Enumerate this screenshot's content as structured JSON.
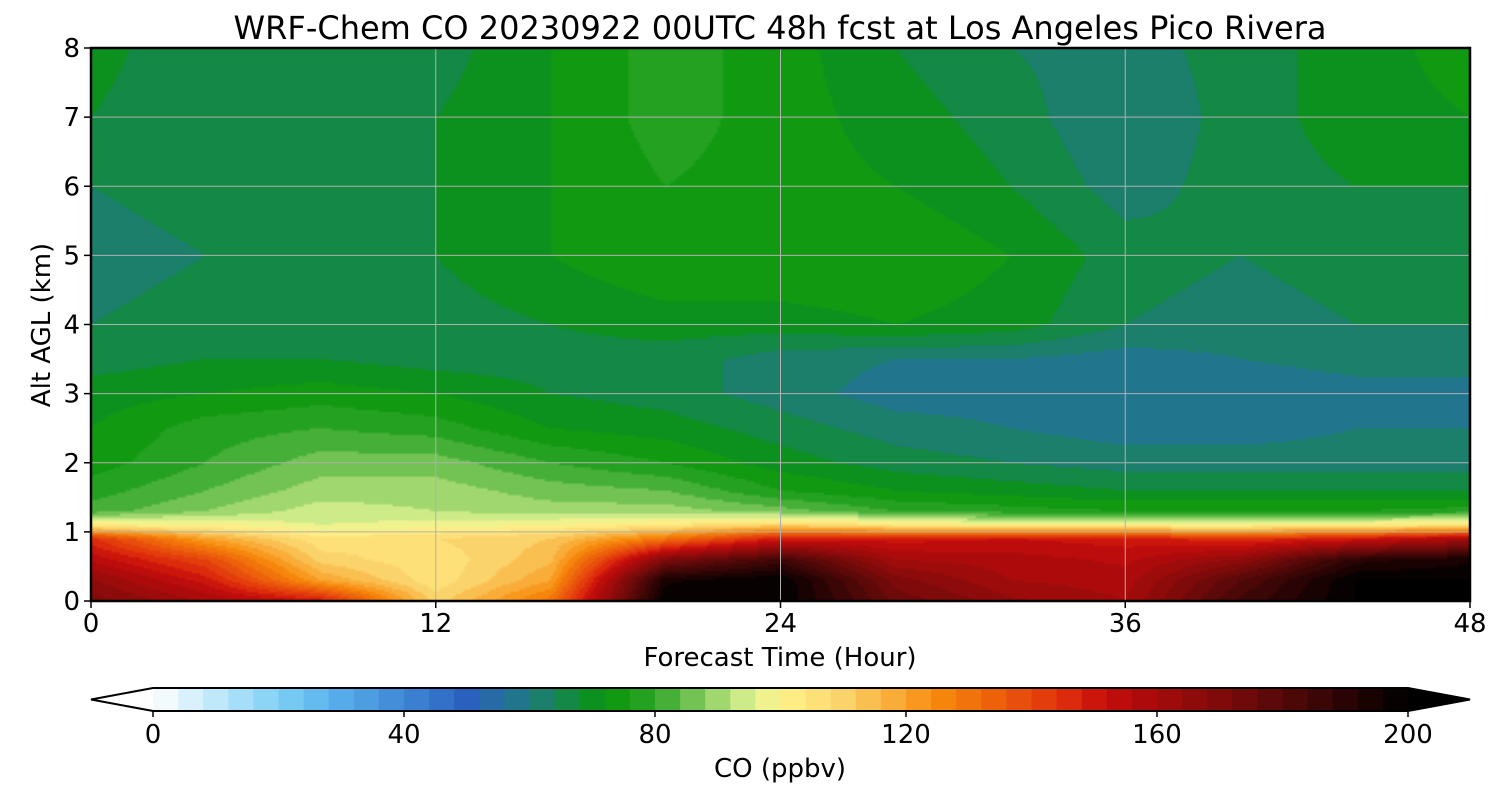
{
  "chart_data": {
    "type": "heatmap",
    "title": "WRF-Chem CO  20230922 00UTC 48h fcst at Los Angeles Pico Rivera",
    "xlabel": "Forecast Time (Hour)",
    "ylabel": "Alt AGL (km)",
    "xlim": [
      0,
      48
    ],
    "ylim": [
      0,
      8
    ],
    "x_ticks": [
      0,
      12,
      24,
      36,
      48
    ],
    "y_ticks": [
      0,
      1,
      2,
      3,
      4,
      5,
      6,
      7,
      8
    ],
    "grid": true,
    "forecast_hours": [
      0,
      4,
      8,
      12,
      16,
      20,
      24,
      28,
      32,
      36,
      40,
      44,
      48
    ],
    "altitudes_km": [
      0.0,
      0.3,
      0.6,
      0.9,
      1.1,
      1.3,
      1.6,
      2.0,
      2.5,
      3.0,
      3.5,
      4.0,
      5.0,
      6.0,
      7.0,
      8.0
    ],
    "co_ppbv": [
      [
        170,
        160,
        150,
        110,
        130,
        200,
        200,
        175,
        165,
        160,
        185,
        200,
        200
      ],
      [
        165,
        150,
        120,
        105,
        120,
        195,
        200,
        170,
        160,
        158,
        180,
        200,
        200
      ],
      [
        155,
        140,
        110,
        105,
        115,
        170,
        185,
        160,
        158,
        155,
        165,
        190,
        195
      ],
      [
        145,
        120,
        105,
        108,
        112,
        130,
        150,
        150,
        152,
        150,
        145,
        150,
        160
      ],
      [
        102,
        100,
        96,
        98,
        100,
        104,
        110,
        104,
        100,
        100,
        100,
        102,
        105
      ],
      [
        82,
        88,
        94,
        92,
        90,
        90,
        86,
        80,
        78,
        76,
        76,
        76,
        78
      ],
      [
        78,
        84,
        90,
        90,
        86,
        84,
        76,
        72,
        70,
        68,
        68,
        68,
        68
      ],
      [
        74,
        80,
        86,
        86,
        80,
        76,
        70,
        66,
        64,
        62,
        62,
        62,
        62
      ],
      [
        72,
        78,
        80,
        78,
        72,
        70,
        66,
        62,
        60,
        58,
        58,
        60,
        60
      ],
      [
        70,
        72,
        74,
        72,
        68,
        66,
        62,
        58,
        58,
        56,
        56,
        58,
        58
      ],
      [
        66,
        68,
        68,
        66,
        66,
        66,
        62,
        60,
        60,
        58,
        60,
        62,
        62
      ],
      [
        64,
        66,
        66,
        66,
        68,
        70,
        70,
        72,
        70,
        64,
        62,
        64,
        64
      ],
      [
        62,
        64,
        66,
        68,
        72,
        76,
        76,
        76,
        72,
        66,
        64,
        66,
        66
      ],
      [
        64,
        66,
        68,
        68,
        72,
        76,
        74,
        72,
        68,
        62,
        66,
        68,
        68
      ],
      [
        68,
        64,
        66,
        68,
        72,
        78,
        74,
        70,
        66,
        60,
        66,
        70,
        72
      ],
      [
        70,
        64,
        64,
        66,
        72,
        78,
        74,
        68,
        64,
        62,
        66,
        70,
        74
      ]
    ],
    "colorbar": {
      "label": "CO  (ppbv)",
      "min": 0,
      "max": 200,
      "ticks": [
        0,
        40,
        80,
        120,
        160,
        200
      ],
      "extend": "both",
      "levels": 50,
      "color_stops": [
        {
          "v": 0,
          "c": "#ffffff"
        },
        {
          "v": 20,
          "c": "#7fd0f5"
        },
        {
          "v": 28,
          "c": "#5ab4ee"
        },
        {
          "v": 50,
          "c": "#2a61bf"
        },
        {
          "v": 60,
          "c": "#1f7a80"
        },
        {
          "v": 72,
          "c": "#08950a"
        },
        {
          "v": 80,
          "c": "#2ea52a"
        },
        {
          "v": 95,
          "c": "#d9f090"
        },
        {
          "v": 100,
          "c": "#fff38c"
        },
        {
          "v": 110,
          "c": "#fbd36b"
        },
        {
          "v": 125,
          "c": "#f7890b"
        },
        {
          "v": 145,
          "c": "#e02f0c"
        },
        {
          "v": 152,
          "c": "#c40c0c"
        },
        {
          "v": 175,
          "c": "#6a0a0a"
        },
        {
          "v": 200,
          "c": "#000000"
        }
      ]
    }
  }
}
